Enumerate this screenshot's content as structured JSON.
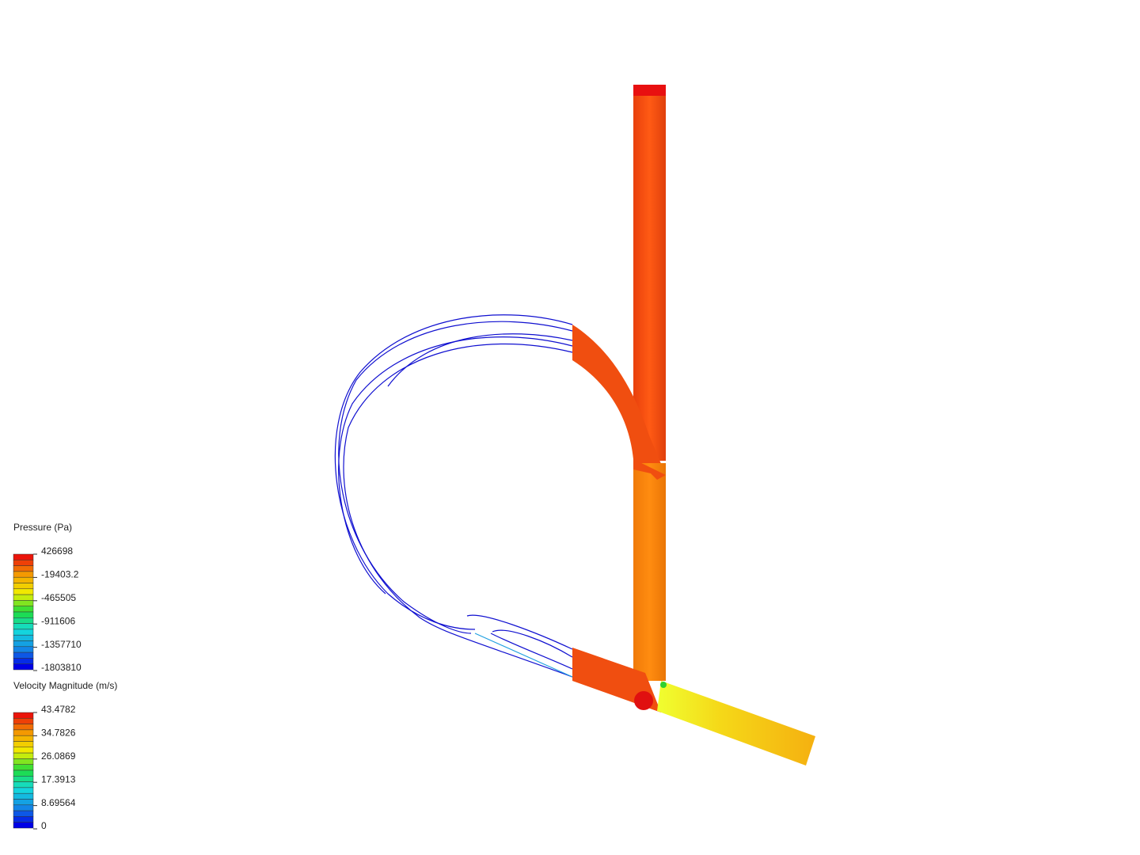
{
  "legends": [
    {
      "title": "Pressure (Pa)",
      "ticks": [
        "426698",
        "-19403.2",
        "-465505",
        "-911606",
        "-1357710",
        "-1803810"
      ]
    },
    {
      "title": "Velocity Magnitude (m/s)",
      "ticks": [
        "43.4782",
        "34.7826",
        "26.0869",
        "17.3913",
        "8.69564",
        "0"
      ]
    }
  ]
}
